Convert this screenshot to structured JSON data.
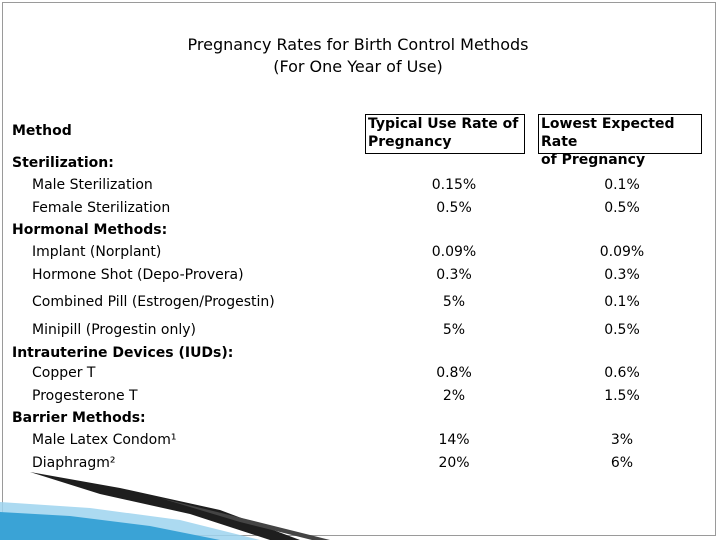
{
  "title": {
    "line1": "Pregnancy Rates for Birth Control Methods",
    "line2": "(For One Year of Use)"
  },
  "headers": {
    "method": "Method",
    "typical": "Typical Use Rate of Pregnancy",
    "typical_l1": "Typical Use Rate of",
    "typical_l2": "Pregnancy",
    "lowest": "Lowest Expected Rate of Pregnancy",
    "lowest_l1": "Lowest Expected Rate",
    "lowest_l2": "of Pregnancy"
  },
  "groups": {
    "sterilization": "Sterilization:",
    "hormonal": "Hormonal Methods:",
    "iud": "Intrauterine Devices (IUDs):",
    "barrier": "Barrier Methods:"
  },
  "rows": [
    {
      "method": "Male Sterilization",
      "typical": "0.15%",
      "lowest": "0.1%"
    },
    {
      "method": "Female Sterilization",
      "typical": "0.5%",
      "lowest": "0.5%"
    },
    {
      "method": "Implant (Norplant)",
      "typical": "0.09%",
      "lowest": "0.09%"
    },
    {
      "method": "Hormone Shot (Depo-Provera)",
      "typical": "0.3%",
      "lowest": "0.3%"
    },
    {
      "method": "Combined Pill (Estrogen/Progestin)",
      "typical": "5%",
      "lowest": "0.1%"
    },
    {
      "method": "Minipill (Progestin only)",
      "typical": "5%",
      "lowest": "0.5%"
    },
    {
      "method": "Copper T",
      "typical": "0.8%",
      "lowest": "0.6%"
    },
    {
      "method": "Progesterone T",
      "typical": "2%",
      "lowest": "1.5%"
    },
    {
      "method": "Male Latex Condom¹",
      "typical": "14%",
      "lowest": "3%"
    },
    {
      "method": "Diaphragm²",
      "typical": "20%",
      "lowest": "6%"
    }
  ],
  "colors": {
    "accent_dark": "#1e1e1e",
    "accent_blue": "#3aa3d6",
    "accent_light_blue": "#9ed4ee",
    "border_gray": "#9a9a9a"
  }
}
